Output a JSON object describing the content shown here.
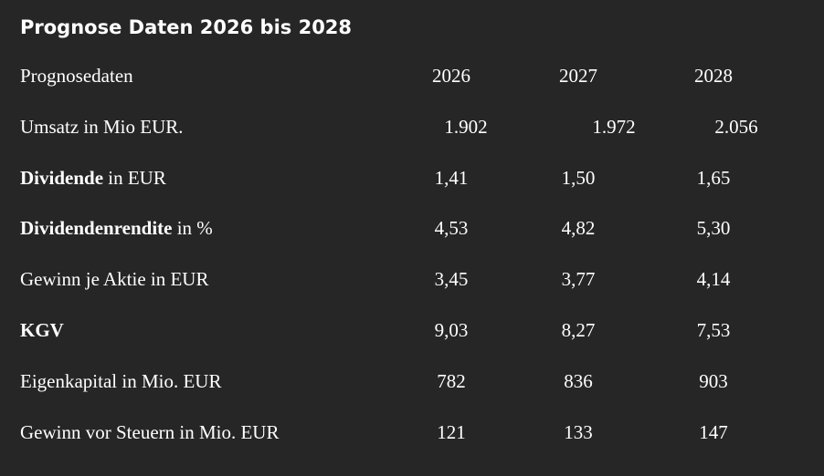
{
  "title": "Prognose Daten 2026 bis 2028",
  "table": {
    "header": {
      "label": "Prognosedaten",
      "years": [
        "2026",
        "2027",
        "2028"
      ]
    },
    "rows": [
      {
        "bold": "",
        "label": "Umsatz in Mio EUR.",
        "values": [
          "1.902",
          "1.972",
          "2.056"
        ]
      },
      {
        "bold": "Dividende",
        "label": " in EUR",
        "values": [
          "1,41",
          "1,50",
          "1,65"
        ]
      },
      {
        "bold": "Dividendenrendite",
        "label": " in %",
        "values": [
          "4,53",
          "4,82",
          "5,30"
        ]
      },
      {
        "bold": "",
        "label": "Gewinn je Aktie in EUR",
        "values": [
          "3,45",
          "3,77",
          "4,14"
        ]
      },
      {
        "bold": "KGV",
        "label": "",
        "values": [
          "9,03",
          "8,27",
          "7,53"
        ]
      },
      {
        "bold": "",
        "label": "Eigenkapital in Mio. EUR",
        "values": [
          "782",
          "836",
          "903"
        ]
      },
      {
        "bold": "",
        "label": "Gewinn vor Steuern in Mio. EUR",
        "values": [
          "121",
          "133",
          "147"
        ]
      }
    ]
  }
}
